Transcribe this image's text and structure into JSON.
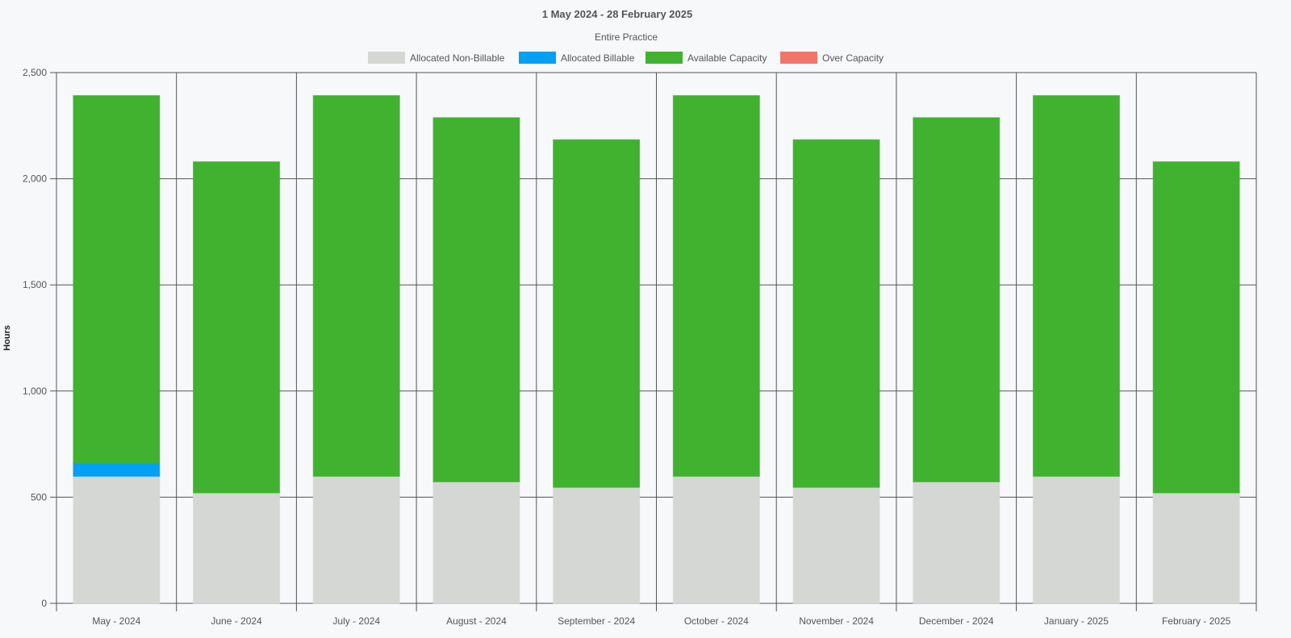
{
  "chart_data": {
    "type": "bar",
    "stacked": true,
    "title": "1 May 2024 - 28 February 2025",
    "subtitle": "Entire Practice",
    "xlabel": "",
    "ylabel": "Hours",
    "ylim": [
      0,
      2500
    ],
    "yticks": [
      0,
      500,
      1000,
      1500,
      2000,
      2500
    ],
    "ytick_labels": [
      "0",
      "500",
      "1,000",
      "1,500",
      "2,000",
      "2,500"
    ],
    "grid": true,
    "legend_position": "top-center",
    "categories": [
      "May - 2024",
      "June - 2024",
      "July - 2024",
      "August - 2024",
      "September - 2024",
      "October - 2024",
      "November - 2024",
      "December - 2024",
      "January - 2025",
      "February - 2025"
    ],
    "series": [
      {
        "name": "Allocated Non-Billable",
        "color": "#d5d7d4",
        "values": [
          598,
          520,
          598,
          572,
          546,
          598,
          546,
          572,
          598,
          520
        ]
      },
      {
        "name": "Allocated Billable",
        "color": "#03a0f3",
        "values": [
          62,
          0,
          0,
          0,
          0,
          0,
          0,
          0,
          0,
          0
        ]
      },
      {
        "name": "Available Capacity",
        "color": "#40b22f",
        "values": [
          1732,
          1560,
          1794,
          1716,
          1638,
          1794,
          1638,
          1716,
          1794,
          1560
        ]
      },
      {
        "name": "Over Capacity",
        "color": "#f3746b",
        "values": [
          0,
          0,
          0,
          0,
          0,
          0,
          0,
          0,
          0,
          0
        ]
      }
    ]
  }
}
